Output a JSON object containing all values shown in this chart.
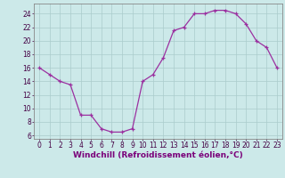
{
  "x": [
    0,
    1,
    2,
    3,
    4,
    5,
    6,
    7,
    8,
    9,
    10,
    11,
    12,
    13,
    14,
    15,
    16,
    17,
    18,
    19,
    20,
    21,
    22,
    23
  ],
  "y": [
    16,
    15,
    14,
    13.5,
    9,
    9,
    7,
    6.5,
    6.5,
    7,
    14,
    15,
    17.5,
    21.5,
    22,
    24,
    24,
    24.5,
    24.5,
    24,
    22.5,
    20,
    19,
    16
  ],
  "line_color": "#9b30a0",
  "marker": "+",
  "marker_size": 3,
  "linewidth": 0.9,
  "markeredgewidth": 0.9,
  "background_color": "#cce9e9",
  "grid_color": "#aacccc",
  "xlabel": "Windchill (Refroidissement éolien,°C)",
  "xlabel_color": "#7a007a",
  "xlabel_fontsize": 6.5,
  "ylabel_ticks": [
    6,
    8,
    10,
    12,
    14,
    16,
    18,
    20,
    22,
    24
  ],
  "xlim": [
    -0.5,
    23.5
  ],
  "ylim": [
    5.5,
    25.5
  ],
  "xtick_labels": [
    "0",
    "1",
    "2",
    "3",
    "4",
    "5",
    "6",
    "7",
    "8",
    "9",
    "10",
    "11",
    "12",
    "13",
    "14",
    "15",
    "16",
    "17",
    "18",
    "19",
    "20",
    "21",
    "22",
    "23"
  ],
  "tick_fontsize": 5.5,
  "tick_color": "#440044",
  "spine_color": "#888888"
}
